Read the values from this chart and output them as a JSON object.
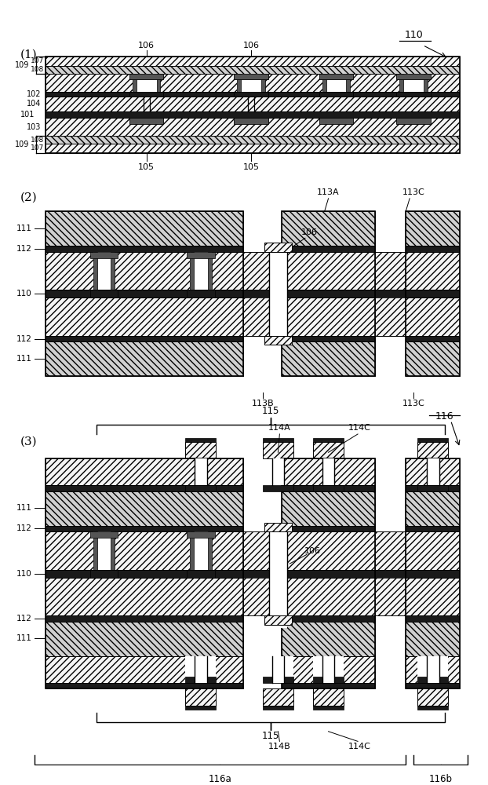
{
  "bg_color": "#ffffff",
  "fig_width": 6.22,
  "fig_height": 10.0,
  "dpi": 100,
  "panel1_label": "(1)",
  "panel2_label": "(2)",
  "panel3_label": "(3)",
  "ref_110": "110",
  "ref_106": "106",
  "ref_107": "107",
  "ref_108": "108",
  "ref_109": "109",
  "ref_102": "102",
  "ref_101": "101",
  "ref_104": "104",
  "ref_103": "103",
  "ref_105": "105",
  "ref_111": "111",
  "ref_112": "112",
  "ref_110b": "110",
  "ref_113A": "113A",
  "ref_113B": "113B",
  "ref_113C": "113C",
  "ref_114A": "114A",
  "ref_114B": "114B",
  "ref_114C": "114C",
  "ref_115": "115",
  "ref_116": "116",
  "ref_116a": "116a",
  "ref_116b": "116b"
}
